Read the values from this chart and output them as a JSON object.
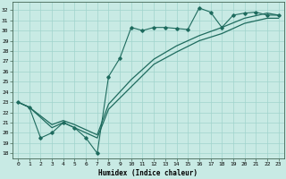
{
  "xlabel": "Humidex (Indice chaleur)",
  "bg_color": "#c8eae4",
  "grid_color": "#a0d4cc",
  "line_color": "#1e6b5e",
  "xlim": [
    -0.5,
    23.5
  ],
  "ylim": [
    17.5,
    32.8
  ],
  "xticks": [
    0,
    1,
    2,
    3,
    4,
    5,
    6,
    7,
    8,
    9,
    10,
    11,
    12,
    13,
    14,
    15,
    16,
    17,
    18,
    19,
    20,
    21,
    22,
    23
  ],
  "yticks": [
    18,
    19,
    20,
    21,
    22,
    23,
    24,
    25,
    26,
    27,
    28,
    29,
    30,
    31,
    32
  ],
  "line1_x": [
    0,
    1,
    2,
    3,
    4,
    5,
    6,
    7,
    8,
    9,
    10,
    11,
    12,
    13,
    14,
    15,
    16,
    17,
    18,
    19,
    20,
    21,
    22,
    23
  ],
  "line1_y": [
    23.0,
    22.5,
    19.5,
    20.0,
    21.0,
    20.5,
    19.5,
    18.0,
    25.5,
    27.3,
    30.3,
    30.0,
    30.3,
    30.3,
    30.2,
    30.1,
    32.2,
    31.8,
    30.3,
    31.5,
    31.7,
    31.8,
    31.5,
    31.5
  ],
  "line2_x": [
    0,
    1,
    3,
    4,
    5,
    7,
    8,
    10,
    12,
    14,
    16,
    18,
    20,
    22,
    23
  ],
  "line2_y": [
    23.0,
    22.5,
    20.8,
    21.2,
    20.8,
    19.8,
    22.8,
    25.2,
    27.2,
    28.5,
    29.5,
    30.3,
    31.2,
    31.7,
    31.5
  ],
  "line3_x": [
    0,
    1,
    3,
    4,
    5,
    7,
    8,
    10,
    12,
    14,
    16,
    18,
    20,
    22,
    23
  ],
  "line3_y": [
    23.0,
    22.5,
    20.5,
    21.0,
    20.5,
    19.5,
    22.3,
    24.5,
    26.7,
    27.9,
    29.0,
    29.7,
    30.7,
    31.2,
    31.2
  ]
}
